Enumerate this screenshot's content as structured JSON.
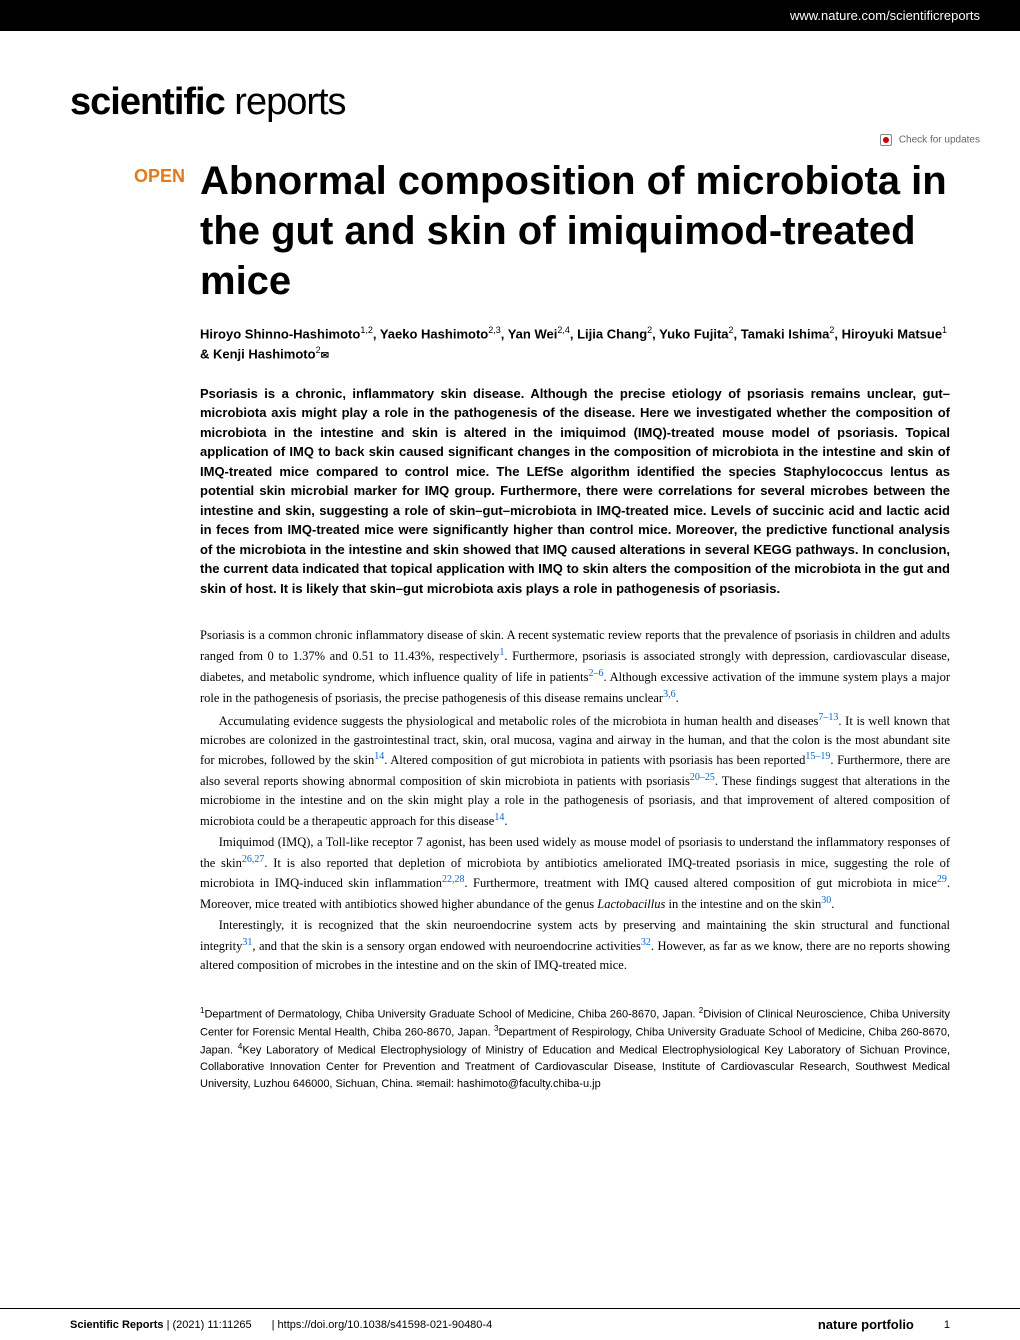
{
  "header": {
    "url": "www.nature.com/scientificreports"
  },
  "logo": {
    "bold": "scientific",
    "light": " reports"
  },
  "checkUpdates": "Check for updates",
  "openBadge": "OPEN",
  "title": "Abnormal composition of microbiota in the gut and skin of imiquimod-treated mice",
  "authors": "Hiroyo Shinno-Hashimoto",
  "authorsSup1": "1,2",
  "authorsComma1": ", Yaeko Hashimoto",
  "authorsSup2": "2,3",
  "authorsComma2": ", Yan Wei",
  "authorsSup3": "2,4",
  "authorsComma3": ", Lijia Chang",
  "authorsSup4": "2",
  "authorsComma4": ", Yuko Fujita",
  "authorsSup5": "2",
  "authorsComma5": ", Tamaki Ishima",
  "authorsSup6": "2",
  "authorsComma6": ", Hiroyuki Matsue",
  "authorsSup7": "1",
  "authorsComma7": " & Kenji Hashimoto",
  "authorsSup8": "2",
  "envelope": "✉",
  "abstract": "Psoriasis is a chronic, inflammatory skin disease. Although the precise etiology of psoriasis remains unclear, gut–microbiota axis might play a role in the pathogenesis of the disease. Here we investigated whether the composition of microbiota in the intestine and skin is altered in the imiquimod (IMQ)-treated mouse model of psoriasis. Topical application of IMQ to back skin caused significant changes in the composition of microbiota in the intestine and skin of IMQ-treated mice compared to control mice. The LEfSe algorithm identified the species Staphylococcus lentus as potential skin microbial marker for IMQ group. Furthermore, there were correlations for several microbes between the intestine and skin, suggesting a role of skin–gut–microbiota in IMQ-treated mice. Levels of succinic acid and lactic acid in feces from IMQ-treated mice were significantly higher than control mice. Moreover, the predictive functional analysis of the microbiota in the intestine and skin showed that IMQ caused alterations in several KEGG pathways. In conclusion, the current data indicated that topical application with IMQ to skin alters the composition of the microbiota in the gut and skin of host. It is likely that skin–gut microbiota axis plays a role in pathogenesis of psoriasis.",
  "para1a": "Psoriasis is a common chronic inflammatory disease of skin. A recent systematic review reports that the prevalence of psoriasis in children and adults ranged from 0 to 1.37% and 0.51 to 11.43%, respectively",
  "ref1": "1",
  "para1b": ". Furthermore, psoriasis is associated strongly with depression, cardiovascular disease, diabetes, and metabolic syndrome, which influence quality of life in patients",
  "ref2": "2–6",
  "para1c": ". Although excessive activation of the immune system plays a major role in the pathogenesis of psoriasis, the precise pathogenesis of this disease remains unclear",
  "ref3": "3,6",
  "para1d": ".",
  "para2a": "Accumulating evidence suggests the physiological and metabolic roles of the microbiota in human health and diseases",
  "ref4": "7–13",
  "para2b": ". It is well known that microbes are colonized in the gastrointestinal tract, skin, oral mucosa, vagina and airway in the human, and that the colon is the most abundant site for microbes, followed by the skin",
  "ref5": "14",
  "para2c": ". Altered composition of gut microbiota in patients with psoriasis has been reported",
  "ref6": "15–19",
  "para2d": ". Furthermore, there are also several reports showing abnormal composition of skin microbiota in patients with psoriasis",
  "ref7": "20–25",
  "para2e": ". These findings suggest that alterations in the microbiome in the intestine and on the skin might play a role in the pathogenesis of psoriasis, and that improvement of altered composition of microbiota could be a therapeutic approach for this disease",
  "ref8": "14",
  "para2f": ".",
  "para3a": "Imiquimod (IMQ), a Toll-like receptor 7 agonist, has been used widely as mouse model of psoriasis to understand the inflammatory responses of the skin",
  "ref9": "26,27",
  "para3b": ". It is also reported that depletion of microbiota by antibiotics ameliorated IMQ-treated psoriasis in mice, suggesting the role of microbiota in IMQ-induced skin inflammation",
  "ref10": "22,28",
  "para3c": ". Furthermore, treatment with IMQ caused altered composition of gut microbiota in mice",
  "ref11": "29",
  "para3d": ". Moreover, mice treated with antibiotics showed higher abundance of the genus ",
  "para3italic": "Lactobacillus",
  "para3e": " in the intestine and on the skin",
  "ref12": "30",
  "para3f": ".",
  "para4a": "Interestingly, it is recognized that the skin neuroendocrine system acts by preserving and maintaining the skin structural and functional integrity",
  "ref13": "31",
  "para4b": ", and that the skin is a sensory organ endowed with neuroendocrine activities",
  "ref14": "32",
  "para4c": ". However, as far as we know, there are no reports showing altered composition of microbes in the intestine and on the skin of IMQ-treated mice.",
  "aff1sup": "1",
  "aff1": "Department of Dermatology, Chiba University Graduate School of Medicine, Chiba 260-8670, Japan. ",
  "aff2sup": "2",
  "aff2": "Division of Clinical Neuroscience, Chiba University Center for Forensic Mental Health, Chiba 260-8670, Japan. ",
  "aff3sup": "3",
  "aff3": "Department of Respirology, Chiba University Graduate School of Medicine, Chiba 260-8670, Japan. ",
  "aff4sup": "4",
  "aff4": "Key Laboratory of Medical Electrophysiology of Ministry of Education and Medical Electrophysiological Key Laboratory of Sichuan Province, Collaborative Innovation Center for Prevention and Treatment of Cardiovascular Disease, Institute of Cardiovascular Research, Southwest Medical University, Luzhou 646000, Sichuan, China. ",
  "affEmail": "email: hashimoto@faculty.chiba-u.jp",
  "footer": {
    "journal": "Scientific Reports",
    "citation": "(2021) 11:11265",
    "doi": "| https://doi.org/10.1038/s41598-021-90480-4",
    "natureLogo": "nature portfolio",
    "pageNum": "1"
  }
}
